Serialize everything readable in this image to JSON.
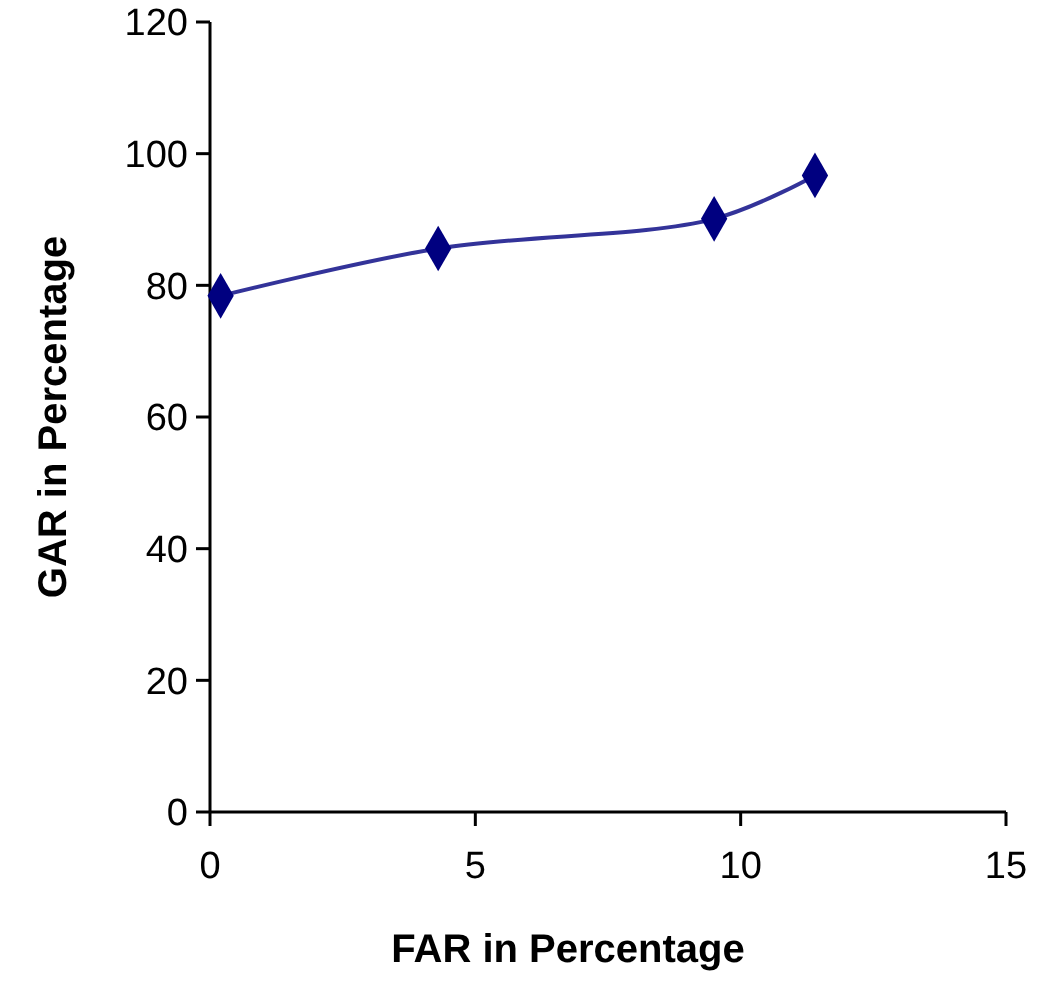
{
  "chart_data": {
    "type": "line",
    "xlabel": "FAR in Percentage",
    "ylabel": "GAR in Percentage",
    "x": [
      0.2,
      4.3,
      9.5,
      11.4
    ],
    "series": [
      {
        "color": "#000080",
        "values": [
          78.4,
          85.6,
          90.1,
          96.7
        ]
      }
    ],
    "xlim": [
      0,
      15
    ],
    "xticks": [
      0,
      5,
      10,
      15
    ],
    "ylim": [
      0,
      120
    ],
    "yticks": [
      0,
      20,
      40,
      60,
      80,
      100,
      120
    ],
    "grid": false,
    "marker": "diamond",
    "line_style": "solid"
  }
}
